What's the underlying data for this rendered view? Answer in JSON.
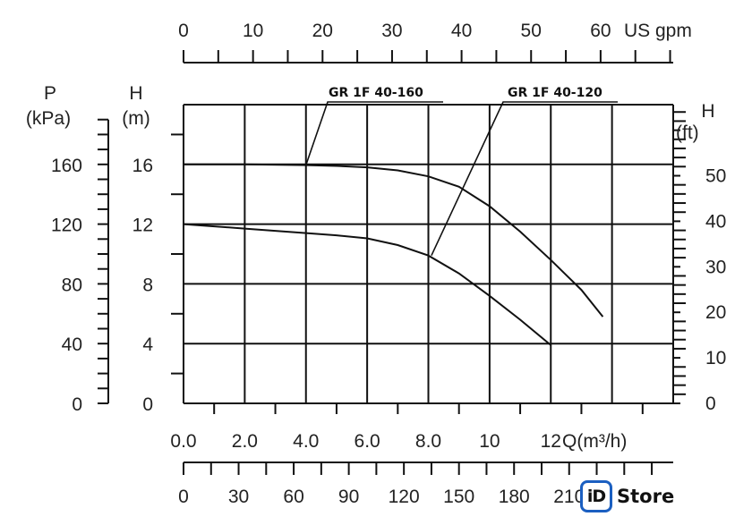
{
  "chart_data": {
    "type": "line",
    "title": "",
    "xlabel": "Q(m³/h)",
    "ylabel": "H (m)",
    "xlim": [
      0,
      16
    ],
    "ylim": [
      0,
      20
    ],
    "grid": true,
    "x_ticks": [
      "0.0",
      "2.0",
      "4.0",
      "6.0",
      "8.0",
      "10",
      "12"
    ],
    "y_ticks": [
      "0",
      "4",
      "8",
      "12",
      "16"
    ],
    "units": {
      "h_m_a": "H",
      "h_m_b": "(m)",
      "p_a": "P",
      "p_b": "(kPa)",
      "h_ft_a": "H",
      "h_ft_b": "(ft)",
      "q": "Q(m³/h)",
      "usgpm": "US gpm"
    },
    "p_axis_ticks": [
      "0",
      "40",
      "80",
      "120",
      "160"
    ],
    "ft_axis_ticks": [
      "0",
      "10",
      "20",
      "30",
      "40",
      "50"
    ],
    "usgpm_axis_ticks": [
      "0",
      "10",
      "20",
      "30",
      "40",
      "50",
      "60"
    ],
    "bottom_axis_ticks": [
      "0",
      "30",
      "60",
      "90",
      "120",
      "150",
      "180",
      "210"
    ],
    "series": [
      {
        "name": "GR 1F 40-160",
        "x": [
          0,
          2,
          4,
          5,
          6,
          7,
          8,
          9,
          10,
          11,
          12,
          13,
          13.7
        ],
        "y": [
          16,
          16,
          15.95,
          15.9,
          15.8,
          15.6,
          15.2,
          14.5,
          13.2,
          11.5,
          9.6,
          7.6,
          5.8
        ]
      },
      {
        "name": "GR 1F 40-120",
        "x": [
          0,
          2,
          4,
          5,
          6,
          7,
          8,
          9,
          10,
          11,
          12
        ],
        "y": [
          12,
          11.7,
          11.4,
          11.25,
          11.05,
          10.6,
          9.9,
          8.7,
          7.2,
          5.6,
          3.9
        ]
      }
    ]
  },
  "logo": {
    "mark": "iD",
    "text": "Store"
  }
}
